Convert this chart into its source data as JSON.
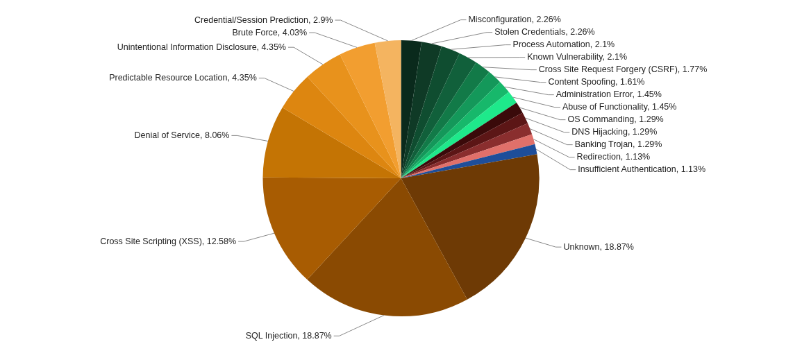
{
  "chart_data": {
    "type": "pie",
    "categories": [
      "Misconfiguration",
      "Stolen Credentials",
      "Process Automation",
      "Known Vulnerability",
      "Cross Site Request Forgery (CSRF)",
      "Content Spoofing",
      "Administration Error",
      "Abuse of Functionality",
      "OS Commanding",
      "DNS Hijacking",
      "Banking Trojan",
      "Redirection",
      "Insufficient Authentication",
      "Unknown",
      "SQL Injection",
      "Cross Site Scripting (XSS)",
      "Denial of Service",
      "Predictable Resource Location",
      "Unintentional Information Disclosure",
      "Brute Force",
      "Credential/Session Prediction"
    ],
    "values": [
      2.26,
      2.26,
      2.1,
      2.1,
      1.77,
      1.61,
      1.45,
      1.45,
      1.29,
      1.29,
      1.29,
      1.13,
      1.13,
      18.87,
      18.87,
      12.58,
      8.06,
      4.35,
      4.35,
      4.03,
      2.9
    ],
    "value_labels": [
      "2.26%",
      "2.26%",
      "2.1%",
      "2.1%",
      "1.77%",
      "1.61%",
      "1.45%",
      "1.45%",
      "1.29%",
      "1.29%",
      "1.29%",
      "1.13%",
      "1.13%",
      "18.87%",
      "18.87%",
      "12.58%",
      "8.06%",
      "4.35%",
      "4.35%",
      "4.03%",
      "2.9%"
    ],
    "colors": [
      "#0a2a1c",
      "#0f3a26",
      "#0f4d30",
      "#11603b",
      "#127a48",
      "#14985a",
      "#17b86b",
      "#1ee98b",
      "#3a0a0a",
      "#5c1616",
      "#8a2e2e",
      "#e0706a",
      "#1e4e9a",
      "#6e3a05",
      "#8a4a02",
      "#a85c02",
      "#c47404",
      "#dd8610",
      "#e8921c",
      "#f29e30",
      "#f4b460"
    ],
    "legend": false
  }
}
